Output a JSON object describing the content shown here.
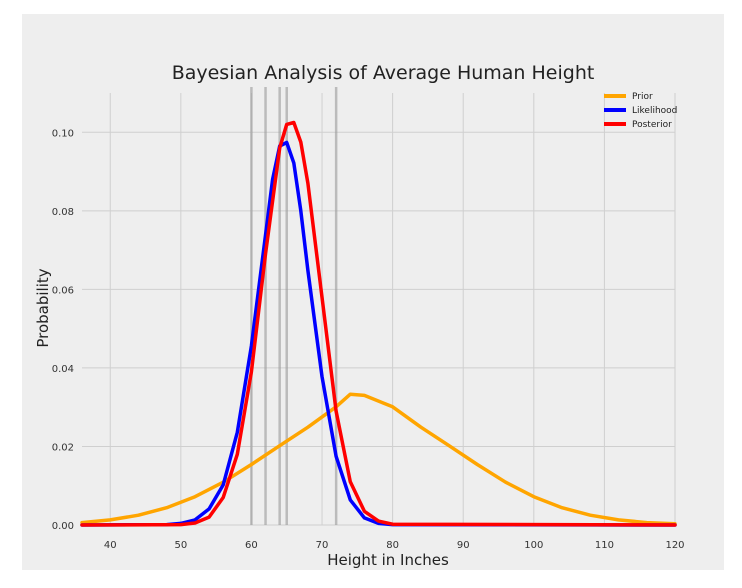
{
  "chart_data": {
    "type": "line",
    "title": "Bayesian Analysis of Average Human Height",
    "xlabel": "Height in Inches",
    "ylabel": "Probability",
    "xlim": [
      36,
      120
    ],
    "ylim": [
      0,
      0.11
    ],
    "xticks": [
      40,
      50,
      60,
      70,
      80,
      90,
      100,
      110,
      120
    ],
    "yticks": [
      0.0,
      0.02,
      0.04,
      0.06,
      0.08,
      0.1
    ],
    "ytick_labels": [
      "0.00",
      "0.02",
      "0.04",
      "0.06",
      "0.08",
      "0.10"
    ],
    "grid": true,
    "legend_position": "top-right",
    "observations": [
      60,
      62,
      64,
      65,
      72
    ],
    "series": [
      {
        "name": "Prior",
        "color": "#FFA500",
        "x": [
          36,
          40,
          44,
          48,
          52,
          56,
          60,
          64,
          68,
          72,
          74,
          76,
          80,
          84,
          88,
          92,
          96,
          100,
          104,
          108,
          112,
          116,
          120
        ],
        "y": [
          0.0006,
          0.0013,
          0.0025,
          0.0044,
          0.0072,
          0.0109,
          0.0154,
          0.0202,
          0.0249,
          0.0301,
          0.0333,
          0.033,
          0.0301,
          0.0249,
          0.0202,
          0.0154,
          0.0109,
          0.0072,
          0.0044,
          0.0025,
          0.0013,
          0.0006,
          0.0003
        ]
      },
      {
        "name": "Likelihood",
        "color": "#0000FF",
        "x": [
          36,
          48,
          50,
          52,
          54,
          56,
          58,
          60,
          62,
          63,
          64,
          65,
          66,
          67,
          68,
          70,
          72,
          74,
          76,
          78,
          80,
          120
        ],
        "y": [
          0.0,
          0.0001,
          0.0004,
          0.0013,
          0.0041,
          0.0102,
          0.0236,
          0.0456,
          0.0738,
          0.088,
          0.0965,
          0.0974,
          0.0922,
          0.08,
          0.0648,
          0.0378,
          0.0175,
          0.0064,
          0.0018,
          0.0004,
          0.0001,
          0.0
        ]
      },
      {
        "name": "Posterior",
        "color": "#FF0000",
        "x": [
          36,
          50,
          52,
          54,
          56,
          58,
          60,
          62,
          64,
          65,
          66,
          67,
          68,
          70,
          72,
          74,
          76,
          78,
          80,
          120
        ],
        "y": [
          0.0,
          0.0001,
          0.0005,
          0.002,
          0.007,
          0.018,
          0.039,
          0.069,
          0.096,
          0.102,
          0.1025,
          0.0975,
          0.087,
          0.058,
          0.029,
          0.011,
          0.0035,
          0.001,
          0.0002,
          0.0
        ]
      }
    ]
  }
}
